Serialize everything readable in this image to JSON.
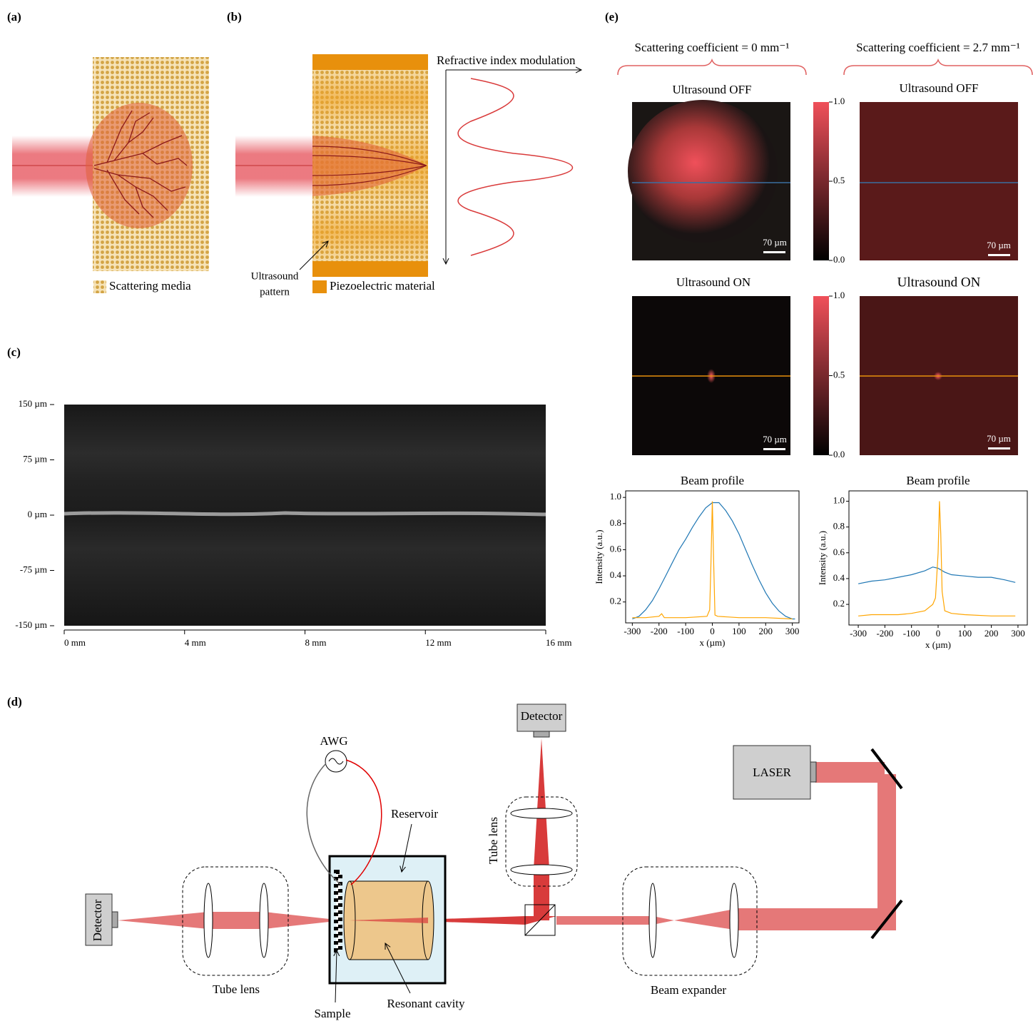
{
  "panel_a": {
    "label": "(a)",
    "legend": "Scattering media"
  },
  "panel_b": {
    "label": "(b)",
    "axis_label": "Refractive index modulation",
    "pattern_label": [
      "Ultrasound",
      "pattern"
    ],
    "legend": "Piezoelectric material"
  },
  "panel_c": {
    "label": "(c)",
    "xlim": [
      0,
      16
    ],
    "ylim": [
      -150,
      150
    ],
    "xticks": [
      {
        "value": 0,
        "label": "0 mm"
      },
      {
        "value": 4,
        "label": "4 mm"
      },
      {
        "value": 8,
        "label": "8 mm"
      },
      {
        "value": 12,
        "label": "12 mm"
      },
      {
        "value": 16,
        "label": "16 mm"
      }
    ],
    "yticks": [
      {
        "value": 150,
        "label": "150 µm"
      },
      {
        "value": 75,
        "label": "75 µm"
      },
      {
        "value": 0,
        "label": "0 µm"
      },
      {
        "value": -75,
        "label": "-75 µm"
      },
      {
        "value": -150,
        "label": "-150 µm"
      }
    ]
  },
  "panel_d": {
    "label": "(d)",
    "detector_top": "Detector",
    "detector_left": "Detector",
    "awg": "AWG",
    "reservoir": "Reservoir",
    "tube_lens_vertical": "Tube lens",
    "laser": "LASER",
    "tube_lens": "Tube lens",
    "sample": "Sample",
    "resonant_cavity": "Resonant cavity",
    "beam_expander": "Beam expander"
  },
  "panel_e": {
    "label": "(e)",
    "columns": [
      {
        "header": "Scattering coefficient = 0 mm⁻¹",
        "off_title": "Ultrasound OFF",
        "on_title": "Ultrasound ON",
        "scale_bar_off": "70 µm",
        "scale_bar_on": "70 µm"
      },
      {
        "header": "Scattering coefficient = 2.7 mm⁻¹",
        "off_title": "Ultrasound OFF",
        "on_title": "Ultrasound ON",
        "scale_bar_off": "70 µm",
        "scale_bar_on": "70 µm"
      }
    ],
    "colorbars": [
      {
        "lim": [
          0,
          1
        ],
        "ticks": [
          {
            "value": 1,
            "label": "1.0"
          },
          {
            "value": 0.5,
            "label": "0.5"
          },
          {
            "value": 0,
            "label": "0.0"
          }
        ]
      },
      {
        "lim": [
          0,
          1
        ],
        "ticks": [
          {
            "value": 1,
            "label": "1.0"
          },
          {
            "value": 0.5,
            "label": "0.5"
          },
          {
            "value": 0,
            "label": "0.0"
          }
        ]
      }
    ]
  },
  "chart_data": [
    {
      "type": "line",
      "title": "Beam profile",
      "xlabel": "x (µm)",
      "ylabel": "Intensity (a.u.)",
      "xlim": [
        -325,
        325
      ],
      "ylim": [
        0.04,
        1.05
      ],
      "xticks": [
        -300,
        -200,
        -100,
        0,
        100,
        200,
        300
      ],
      "yticks": [
        0.2,
        0.4,
        0.6,
        0.8,
        {
          "value": 1,
          "label": "1.0"
        }
      ],
      "series": [
        {
          "color": "#1f77b4",
          "x": [
            -300,
            -275,
            -250,
            -225,
            -200,
            -175,
            -150,
            -125,
            -100,
            -75,
            -50,
            -25,
            0,
            25,
            50,
            75,
            100,
            125,
            150,
            175,
            200,
            225,
            250,
            275,
            300,
            310
          ],
          "values": [
            0.07,
            0.09,
            0.14,
            0.21,
            0.3,
            0.4,
            0.5,
            0.6,
            0.68,
            0.77,
            0.85,
            0.92,
            0.96,
            0.96,
            0.9,
            0.82,
            0.72,
            0.6,
            0.48,
            0.37,
            0.27,
            0.19,
            0.13,
            0.09,
            0.07,
            0.07
          ]
        },
        {
          "color": "#ffa500",
          "x": [
            -300,
            -250,
            -200,
            -190,
            -180,
            -100,
            -20,
            -10,
            -5,
            0,
            5,
            10,
            20,
            100,
            200,
            300
          ],
          "values": [
            0.08,
            0.08,
            0.09,
            0.11,
            0.08,
            0.08,
            0.09,
            0.14,
            0.5,
            0.97,
            0.5,
            0.1,
            0.09,
            0.08,
            0.08,
            0.07
          ]
        }
      ]
    },
    {
      "type": "line",
      "title": "Beam profile",
      "xlabel": "x (µm)",
      "ylabel": "Intensity (a.u.)",
      "xlim": [
        -335,
        335
      ],
      "ylim": [
        0.04,
        1.08
      ],
      "xticks": [
        -300,
        -200,
        -100,
        0,
        100,
        200,
        300
      ],
      "yticks": [
        0.2,
        0.4,
        0.6,
        0.8,
        {
          "value": 1,
          "label": "1.0"
        }
      ],
      "series": [
        {
          "color": "#1f77b4",
          "x": [
            -300,
            -250,
            -200,
            -150,
            -100,
            -50,
            -20,
            0,
            25,
            50,
            100,
            150,
            200,
            250,
            290
          ],
          "values": [
            0.36,
            0.38,
            0.39,
            0.41,
            0.43,
            0.46,
            0.49,
            0.48,
            0.45,
            0.43,
            0.42,
            0.41,
            0.41,
            0.39,
            0.37
          ]
        },
        {
          "color": "#ffa500",
          "x": [
            -300,
            -250,
            -200,
            -150,
            -100,
            -50,
            -20,
            -10,
            0,
            5,
            10,
            15,
            25,
            50,
            100,
            200,
            290
          ],
          "values": [
            0.11,
            0.12,
            0.12,
            0.12,
            0.13,
            0.15,
            0.2,
            0.25,
            0.6,
            1.0,
            0.75,
            0.3,
            0.15,
            0.13,
            0.12,
            0.11,
            0.11
          ]
        }
      ]
    }
  ]
}
